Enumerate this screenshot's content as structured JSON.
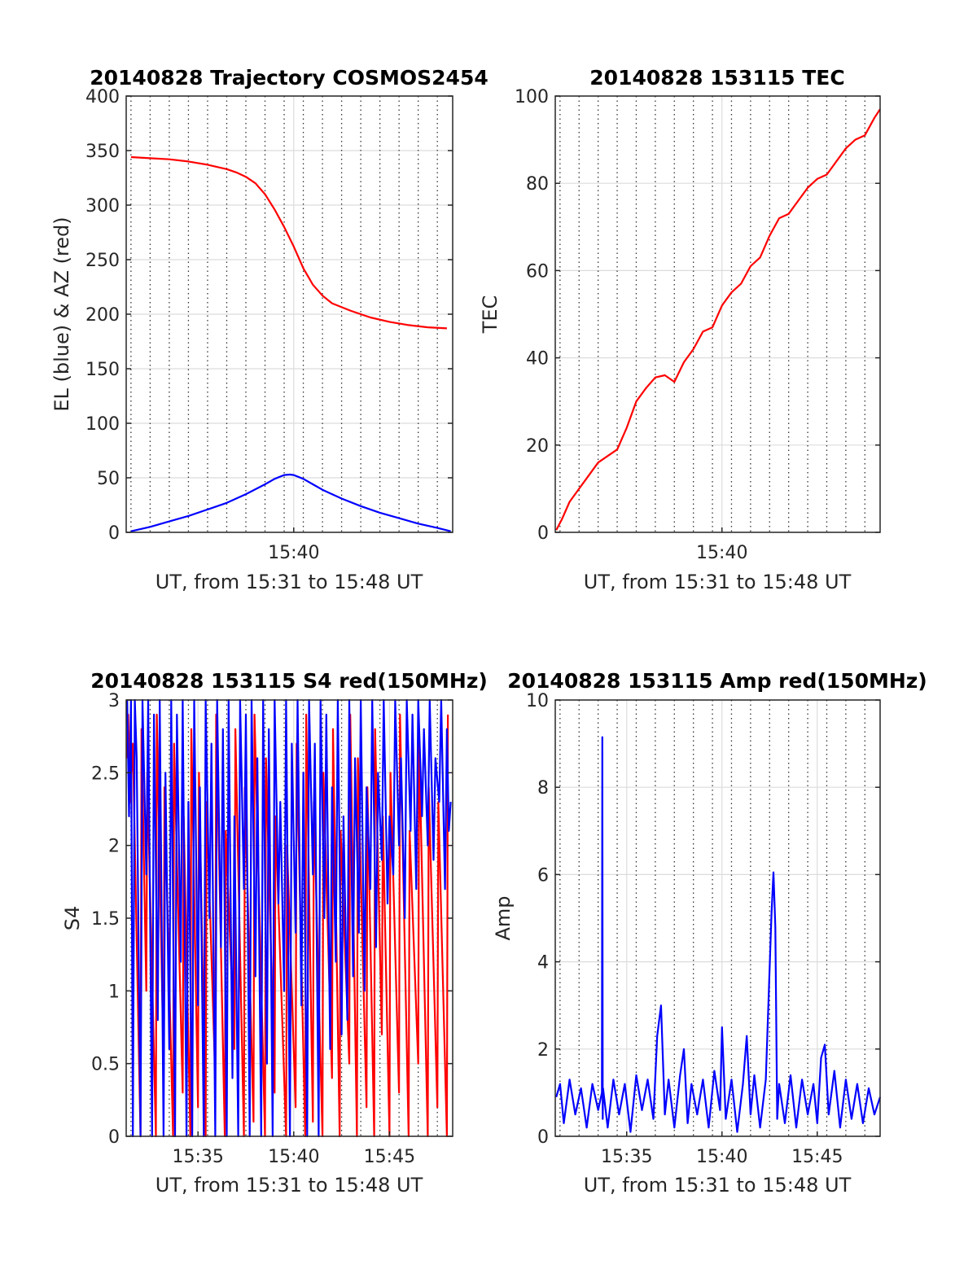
{
  "chart_data": [
    {
      "id": "trajectory",
      "type": "line",
      "title": "20140828 Trajectory COSMOS2454",
      "xlabel": "UT, from 15:31 to 15:48 UT",
      "ylabel": "EL (blue) & AZ (red)",
      "x_unit": "minutes",
      "xlim": [
        931.25,
        948.3
      ],
      "ylim": [
        0,
        400
      ],
      "grid": true,
      "yticks": [
        0,
        50,
        100,
        150,
        200,
        250,
        300,
        350,
        400
      ],
      "ytick_labels": [
        "0",
        "50",
        "100",
        "150",
        "200",
        "250",
        "300",
        "350",
        "400"
      ],
      "xticks": [
        940
      ],
      "xtick_labels": [
        "15:40"
      ],
      "minor_grid_x": [
        931.5,
        932.5,
        933.5,
        934.5,
        935.5,
        936.5,
        937.5,
        938.5,
        939.5,
        940.5,
        941.5,
        942.5,
        943.5,
        944.5,
        945.5,
        946.5,
        947.5
      ],
      "series": [
        {
          "label": "AZ",
          "color": "#ff0000",
          "x": [
            931.5,
            932.5,
            933.5,
            934.5,
            935.5,
            936.5,
            937.0,
            937.5,
            938.0,
            938.5,
            939.0,
            939.5,
            940.0,
            940.5,
            941.0,
            941.5,
            942.0,
            943.0,
            944.0,
            945.0,
            946.0,
            947.0,
            948.0
          ],
          "y": [
            344,
            343,
            342,
            340,
            337,
            333,
            330,
            326,
            320,
            310,
            296,
            280,
            262,
            242,
            227,
            217,
            210,
            203,
            197,
            193,
            190,
            188,
            187
          ]
        },
        {
          "label": "EL",
          "color": "#0000ff",
          "x": [
            931.5,
            932.5,
            933.5,
            934.5,
            935.5,
            936.5,
            937.5,
            938.5,
            939.0,
            939.5,
            939.8,
            940.0,
            940.5,
            941.0,
            941.5,
            942.0,
            942.5,
            943.5,
            944.5,
            945.5,
            946.5,
            947.5,
            948.2
          ],
          "y": [
            1,
            5,
            10,
            15,
            21,
            27,
            35,
            44,
            49,
            52.5,
            53,
            52.5,
            49,
            44,
            39,
            35,
            31,
            24,
            18,
            13,
            8,
            4,
            1
          ]
        }
      ]
    },
    {
      "id": "tec",
      "type": "line",
      "title": "20140828 153115 TEC",
      "xlabel": "UT, from 15:31 to 15:48 UT",
      "ylabel": "TEC",
      "x_unit": "minutes",
      "xlim": [
        931.25,
        948.3
      ],
      "ylim": [
        0,
        100
      ],
      "grid": true,
      "yticks": [
        0,
        20,
        40,
        60,
        80,
        100
      ],
      "ytick_labels": [
        "0",
        "20",
        "40",
        "60",
        "80",
        "100"
      ],
      "xticks": [
        940
      ],
      "xtick_labels": [
        "15:40"
      ],
      "minor_grid_x": [
        931.5,
        932.5,
        933.5,
        934.5,
        935.5,
        936.5,
        937.5,
        938.5,
        939.5,
        940.5,
        941.5,
        942.5,
        943.5,
        944.5,
        945.5,
        946.5,
        947.5
      ],
      "series": [
        {
          "label": "TEC",
          "color": "#ff0000",
          "x": [
            931.3,
            931.6,
            932.0,
            932.5,
            933.0,
            933.5,
            934.0,
            934.5,
            935.0,
            935.5,
            936.0,
            936.5,
            937.0,
            937.5,
            938.0,
            938.5,
            939.0,
            939.5,
            940.0,
            940.5,
            941.0,
            941.5,
            942.0,
            942.5,
            943.0,
            943.5,
            944.0,
            944.5,
            945.0,
            945.5,
            946.0,
            946.5,
            947.0,
            947.5,
            948.0,
            948.3
          ],
          "y": [
            0.5,
            3,
            7,
            10,
            13,
            16,
            17.5,
            19,
            24,
            30,
            33,
            35.5,
            36,
            34.5,
            39,
            42,
            46,
            47,
            52,
            55,
            57,
            61,
            63,
            68,
            72,
            73,
            76,
            79,
            81,
            82,
            85,
            88,
            90,
            91,
            95,
            97
          ]
        }
      ]
    },
    {
      "id": "s4",
      "type": "line",
      "title": "20140828 153115 S4 red(150MHz)",
      "xlabel": "UT, from 15:31 to 15:48 UT",
      "ylabel": "S4",
      "x_unit": "minutes",
      "xlim": [
        931.25,
        948.3
      ],
      "ylim": [
        0,
        3
      ],
      "grid": true,
      "yticks": [
        0,
        0.5,
        1,
        1.5,
        2,
        2.5,
        3
      ],
      "ytick_labels": [
        "0",
        "0.5",
        "1",
        "1.5",
        "2",
        "2.5",
        "3"
      ],
      "xticks": [
        935,
        940,
        945
      ],
      "xtick_labels": [
        "15:35",
        "15:40",
        "15:45"
      ],
      "minor_grid_x": [
        931.5,
        932.5,
        933.5,
        934.5,
        935.5,
        936.5,
        937.5,
        938.5,
        939.5,
        940.5,
        941.5,
        942.5,
        943.5,
        944.5,
        945.5,
        946.5,
        947.5
      ],
      "series": [
        {
          "label": "red",
          "color": "#ff0000",
          "x": [
            931.3,
            931.35,
            931.45,
            931.6,
            932.0,
            932.05,
            932.3,
            932.35,
            932.8,
            932.85,
            933.2,
            933.25,
            933.7,
            933.75,
            934.2,
            934.25,
            934.6,
            934.65,
            935.0,
            935.05,
            935.4,
            935.45,
            935.9,
            935.95,
            936.4,
            936.45,
            936.9,
            936.95,
            937.4,
            937.45,
            937.9,
            937.95,
            938.5,
            938.55,
            939.0,
            939.05,
            939.6,
            939.65,
            940.1,
            940.15,
            940.6,
            940.65,
            941.0,
            941.05,
            941.5,
            941.55,
            942.0,
            942.05,
            942.4,
            942.45,
            942.9,
            942.95,
            943.3,
            943.35,
            943.8,
            943.85,
            944.2,
            944.25,
            944.6,
            944.65,
            945.0,
            945.05,
            945.5,
            945.55,
            946.0,
            946.05,
            946.5,
            946.55,
            947.0,
            947.05,
            947.5,
            947.55,
            948.0,
            948.05
          ],
          "y": [
            2.6,
            2.9,
            2.3,
            2.7,
            0,
            2.8,
            1.0,
            2.5,
            0,
            2.9,
            0.5,
            2.4,
            0,
            2.7,
            0.3,
            2.2,
            0,
            2.8,
            0.2,
            2.5,
            0,
            2.3,
            0.4,
            2.9,
            0,
            2.1,
            0.6,
            2.8,
            0,
            2.4,
            0.1,
            2.9,
            0,
            2.6,
            0.3,
            2.2,
            0,
            2.0,
            0.2,
            2.7,
            0,
            2.9,
            0.1,
            2.3,
            0,
            2.5,
            0.4,
            2.8,
            0,
            2.1,
            0.5,
            2.9,
            0,
            2.6,
            0.2,
            2.4,
            0,
            2.8,
            0.7,
            2.2,
            0,
            2.5,
            0.3,
            2.9,
            0,
            2.1,
            0.5,
            2.7,
            0,
            2.4,
            0.2,
            2.3,
            0,
            2.9
          ]
        },
        {
          "label": "blue",
          "color": "#0000ff",
          "x": [
            931.3,
            931.4,
            931.5,
            931.6,
            931.7,
            931.8,
            932.0,
            932.1,
            932.3,
            932.4,
            932.6,
            932.7,
            932.9,
            933.0,
            933.2,
            933.3,
            933.5,
            933.6,
            933.8,
            933.9,
            934.1,
            934.2,
            934.4,
            934.5,
            934.7,
            934.8,
            935.0,
            935.1,
            935.3,
            935.4,
            935.6,
            935.7,
            935.9,
            936.0,
            936.2,
            936.3,
            936.5,
            936.6,
            936.8,
            936.9,
            937.1,
            937.2,
            937.4,
            937.5,
            937.7,
            937.8,
            938.0,
            938.1,
            938.3,
            938.4,
            938.6,
            938.7,
            938.9,
            939.0,
            939.2,
            939.3,
            939.5,
            939.6,
            939.8,
            939.9,
            940.1,
            940.2,
            940.4,
            940.5,
            940.7,
            940.8,
            941.0,
            941.1,
            941.3,
            941.4,
            941.6,
            941.7,
            941.9,
            942.0,
            942.2,
            942.3,
            942.5,
            942.6,
            942.8,
            942.9,
            943.1,
            943.2,
            943.4,
            943.5,
            943.7,
            943.8,
            944.0,
            944.1,
            944.3,
            944.4,
            944.6,
            944.7,
            944.9,
            945.0,
            945.2,
            945.3,
            945.5,
            945.6,
            945.8,
            945.9,
            946.1,
            946.2,
            946.4,
            946.5,
            946.7,
            946.8,
            947.0,
            947.1,
            947.3,
            947.4,
            947.6,
            947.7,
            947.9,
            948.0,
            948.1,
            948.2
          ],
          "y": [
            3,
            2.2,
            3,
            0,
            3,
            2.6,
            0,
            3,
            1.8,
            3,
            0,
            2.9,
            0.8,
            3,
            0,
            2.5,
            0.6,
            3,
            0,
            2.9,
            1.2,
            3,
            0,
            2.3,
            0,
            3,
            0.9,
            2.4,
            0,
            3,
            1.5,
            2.7,
            0,
            3,
            1.3,
            2.8,
            0,
            3,
            0.4,
            2.2,
            0,
            3,
            1.7,
            2.9,
            0,
            3,
            1.1,
            2.6,
            0,
            3,
            0.5,
            2.8,
            0,
            3,
            1.6,
            2.3,
            1.0,
            3,
            0,
            2.7,
            1.4,
            3,
            0.9,
            2.5,
            0,
            3,
            1.8,
            2.7,
            0,
            3,
            1.5,
            2.9,
            0.6,
            2.4,
            1.2,
            3,
            0.7,
            2.2,
            0.8,
            3,
            1.1,
            2.6,
            1.4,
            3,
            1.0,
            2.4,
            1.7,
            3,
            1.3,
            2.5,
            1.9,
            3,
            1.6,
            2.2,
            1.8,
            3,
            2.0,
            2.6,
            1.5,
            3,
            2.1,
            2.9,
            1.7,
            3,
            2.2,
            2.8,
            2.0,
            3,
            1.9,
            2.6,
            2.3,
            3,
            1.7,
            2.8,
            2.1,
            2.3
          ]
        }
      ]
    },
    {
      "id": "amp",
      "type": "line",
      "title": "20140828 153115 Amp red(150MHz)",
      "xlabel": "UT, from 15:31 to 15:48 UT",
      "ylabel": "Amp",
      "x_unit": "minutes",
      "xlim": [
        931.25,
        948.3
      ],
      "ylim": [
        0,
        10
      ],
      "grid": true,
      "yticks": [
        0,
        2,
        4,
        6,
        8,
        10
      ],
      "ytick_labels": [
        "0",
        "2",
        "4",
        "6",
        "8",
        "10"
      ],
      "xticks": [
        935,
        940,
        945
      ],
      "xtick_labels": [
        "15:35",
        "15:40",
        "15:45"
      ],
      "minor_grid_x": [
        931.5,
        932.5,
        933.5,
        934.5,
        935.5,
        936.5,
        937.5,
        938.5,
        939.5,
        940.5,
        941.5,
        942.5,
        943.5,
        944.5,
        945.5,
        946.5,
        947.5
      ],
      "series": [
        {
          "label": "Amp",
          "color": "#0000ff",
          "x": [
            931.3,
            931.5,
            931.7,
            932.0,
            932.3,
            932.6,
            932.9,
            933.2,
            933.5,
            933.7,
            933.72,
            933.74,
            933.76,
            934.0,
            934.3,
            934.6,
            934.9,
            935.2,
            935.5,
            935.8,
            936.1,
            936.4,
            936.6,
            936.8,
            937.0,
            937.2,
            937.5,
            937.8,
            938.0,
            938.2,
            938.4,
            938.7,
            939.0,
            939.3,
            939.6,
            939.9,
            940.0,
            940.2,
            940.5,
            940.8,
            941.1,
            941.3,
            941.5,
            941.7,
            942.0,
            942.3,
            942.6,
            942.7,
            942.8,
            942.9,
            943.0,
            943.3,
            943.6,
            943.9,
            944.2,
            944.5,
            944.8,
            945.0,
            945.2,
            945.4,
            945.6,
            945.9,
            946.2,
            946.5,
            946.8,
            947.1,
            947.4,
            947.7,
            948.0,
            948.3
          ],
          "y": [
            0.9,
            1.2,
            0.3,
            1.3,
            0.5,
            1.1,
            0.2,
            1.2,
            0.6,
            1.0,
            9.15,
            0.4,
            1.1,
            0.2,
            1.3,
            0.5,
            1.2,
            0.1,
            1.4,
            0.6,
            1.3,
            0.4,
            2.3,
            3.0,
            0.5,
            1.3,
            0.2,
            1.4,
            2.0,
            0.3,
            1.2,
            0.5,
            1.3,
            0.2,
            1.5,
            0.6,
            2.5,
            0.4,
            1.3,
            0.1,
            1.2,
            2.3,
            0.5,
            1.4,
            0.2,
            1.3,
            5.1,
            6.05,
            4.8,
            0.4,
            1.2,
            0.3,
            1.4,
            0.2,
            1.3,
            0.5,
            1.2,
            0.3,
            1.8,
            2.1,
            0.5,
            1.5,
            0.2,
            1.3,
            0.4,
            1.2,
            0.3,
            1.1,
            0.5,
            0.9
          ]
        }
      ]
    }
  ]
}
